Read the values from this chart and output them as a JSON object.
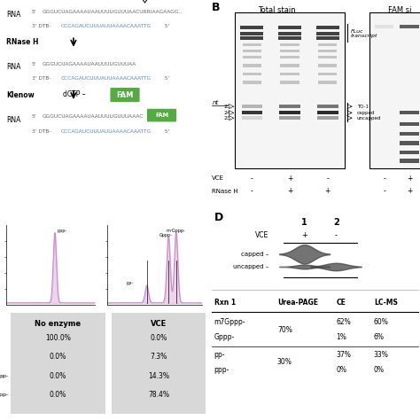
{
  "colors": {
    "rna_seq": "#666666",
    "dtb_seq": "#5588cc",
    "fam_box_bg": "#55aa44",
    "fam_text": "#ffffff",
    "table_bg": "#d8d8d8",
    "peak_color": "#cc88cc",
    "peak_fill": "#ddaadd",
    "band_dark": "#222222",
    "band_mid": "#555555",
    "band_light": "#999999",
    "gel_bg": "#f5f5f5"
  },
  "panel_C_table_left": {
    "header": "No enzyme",
    "values": [
      "100.0%",
      "0.0%",
      "0.0%",
      "0.0%"
    ],
    "row_labels_left": [
      "",
      "",
      "pp-",
      "ppp-"
    ]
  },
  "panel_C_table_right": {
    "header": "VCE",
    "values": [
      "0.0%",
      "7.3%",
      "14.3%",
      "78.4%"
    ]
  },
  "panel_D_table": {
    "headers": [
      "Rxn 1",
      "Urea-PAGE",
      "CE",
      "LC-MS"
    ],
    "rows": [
      [
        "m7Gppp-",
        "70%",
        "62%",
        "60%"
      ],
      [
        "Gppp-",
        "",
        "1%",
        "6%"
      ],
      [
        "pp-",
        "30%",
        "37%",
        "33%"
      ],
      [
        "ppp-",
        "",
        "0%",
        "0%"
      ]
    ]
  }
}
